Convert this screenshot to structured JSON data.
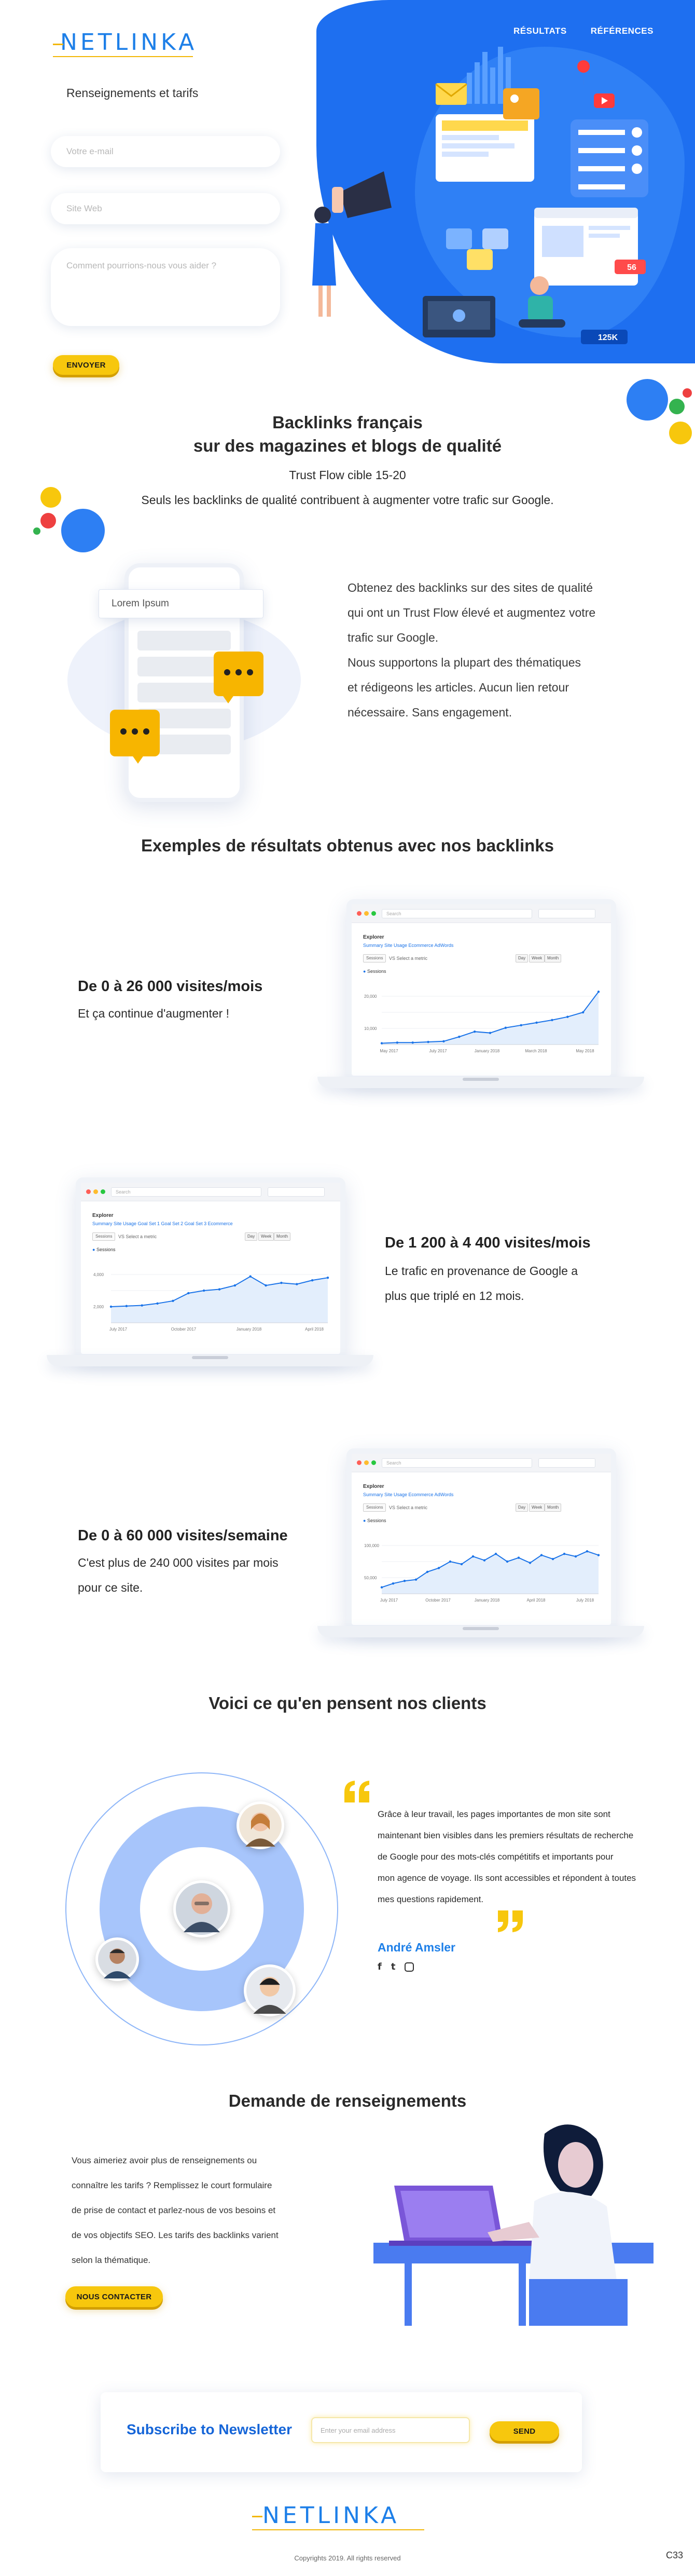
{
  "header": {
    "logo": "NETLINKA",
    "nav": [
      "RÉSULTATS",
      "RÉFÉRENCES"
    ]
  },
  "hero_illustration": {
    "badge_count": "56",
    "stat_badge": "125K"
  },
  "form": {
    "title": "Renseignements et tarifs",
    "email_placeholder": "Votre e-mail",
    "site_placeholder": "Site Web",
    "message_placeholder": "Comment pourrions-nous vous aider ?",
    "submit_label": "ENVOYER"
  },
  "intro": {
    "title_line1": "Backlinks français",
    "title_line2": "sur des magazines et blogs de qualité",
    "subtitle": "Trust Flow cible 15-20",
    "tagline": "Seuls les backlinks de qualité contribuent à augmenter votre trafic sur Google."
  },
  "phone_mockup": {
    "search_text": "Lorem Ipsum"
  },
  "feature": {
    "lines": [
      "Obtenez des backlinks sur des sites de qualité",
      "qui ont un Trust Flow élevé et augmentez votre",
      "trafic sur Google.",
      "Nous supportons la plupart des thématiques",
      "et rédigeons les articles. Aucun lien retour",
      "nécessaire. Sans engagement."
    ]
  },
  "results": {
    "title": "Exemples de résultats obtenus avec nos backlinks",
    "items": [
      {
        "title": "De 0 à 26 000 visites/mois",
        "lines": [
          "Et ça continue d'augmenter !"
        ]
      },
      {
        "title": "De 1 200 à 4 400 visites/mois",
        "lines": [
          "Le trafic en provenance de Google a",
          "plus que triplé en 12 mois."
        ]
      },
      {
        "title": "De 0 à 60 000 visites/semaine",
        "lines": [
          "C'est plus de 240 000 visites par mois",
          "pour ce site."
        ]
      }
    ]
  },
  "screens": [
    {
      "url": "Search",
      "heading": "Explorer",
      "tabs": "Summary   Site Usage   Ecommerce   AdWords",
      "select": "Sessions",
      "vs": "VS   Select a metric",
      "buttons": [
        "Day",
        "Week",
        "Month"
      ],
      "legend": "Sessions",
      "y_labels": [
        "20,000",
        "10,000"
      ],
      "x_labels": [
        "May 2017",
        "July 2017",
        "January 2018",
        "March 2018",
        "May 2018"
      ],
      "chart_data": {
        "type": "area",
        "values": [
          0.02,
          0.03,
          0.03,
          0.04,
          0.05,
          0.12,
          0.2,
          0.18,
          0.26,
          0.3,
          0.34,
          0.38,
          0.43,
          0.5,
          0.82
        ],
        "ylim": [
          0,
          1
        ]
      }
    },
    {
      "url": "Search",
      "heading": "Explorer",
      "tabs": "Summary   Site Usage   Goal Set 1   Goal Set 2   Goal Set 3   Ecommerce",
      "select": "Sessions",
      "vs": "VS   Select a metric",
      "buttons": [
        "Day",
        "Week",
        "Month"
      ],
      "legend": "Sessions",
      "y_labels": [
        "4,000",
        "2,000"
      ],
      "x_labels": [
        "July 2017",
        "October 2017",
        "January 2018",
        "April 2018"
      ],
      "chart_data": {
        "type": "area",
        "values": [
          0.25,
          0.26,
          0.27,
          0.3,
          0.34,
          0.46,
          0.5,
          0.52,
          0.58,
          0.72,
          0.58,
          0.62,
          0.6,
          0.66,
          0.7
        ],
        "ylim": [
          0,
          1
        ]
      }
    },
    {
      "url": "Search",
      "heading": "Explorer",
      "tabs": "Summary   Site Usage   Ecommerce   AdWords",
      "select": "Sessions",
      "vs": "VS   Select a metric",
      "buttons": [
        "Day",
        "Week",
        "Month"
      ],
      "legend": "Sessions",
      "y_labels": [
        "100,000",
        "50,000"
      ],
      "x_labels": [
        "July 2017",
        "October 2017",
        "January 2018",
        "April 2018",
        "July 2018"
      ],
      "chart_data": {
        "type": "area",
        "values": [
          0.1,
          0.16,
          0.2,
          0.22,
          0.34,
          0.4,
          0.5,
          0.46,
          0.58,
          0.52,
          0.62,
          0.5,
          0.56,
          0.48,
          0.6,
          0.54,
          0.62,
          0.58,
          0.66,
          0.6
        ],
        "ylim": [
          0,
          1
        ]
      }
    }
  ],
  "testimonials": {
    "title": "Voici ce qu'en pensent nos clients",
    "quote_lines": [
      "Grâce à leur travail, les pages importantes de mon site sont",
      "maintenant bien visibles dans les premiers résultats de recherche",
      "de Google pour des mots-clés compétitifs et importants pour",
      "mon agence de voyage. Ils sont accessibles et répondent à toutes",
      "mes questions rapidement."
    ],
    "author": "André Amsler",
    "social": [
      "f",
      "t",
      "ig"
    ]
  },
  "contact": {
    "title": "Demande de renseignements",
    "lines": [
      "Vous aimeriez avoir plus de renseignements ou",
      "connaître les tarifs ? Remplissez le court formulaire",
      "de prise de contact et parlez-nous de vos besoins et",
      "de vos objectifs SEO. Les tarifs des backlinks varient",
      "selon la thématique."
    ],
    "button_label": "NOUS CONTACTER"
  },
  "newsletter": {
    "title": "Subscribe to Newsletter",
    "placeholder": "Enter your email address",
    "button_label": "SEND"
  },
  "footer": {
    "logo": "NETLINKA",
    "copyright": "Copyrights 2019. All rights reserved",
    "corner": "C33"
  },
  "colors": {
    "brand_blue": "#1d7fe8",
    "accent_yellow": "#f7c70d",
    "hero_blue": "#1e6ff0"
  }
}
